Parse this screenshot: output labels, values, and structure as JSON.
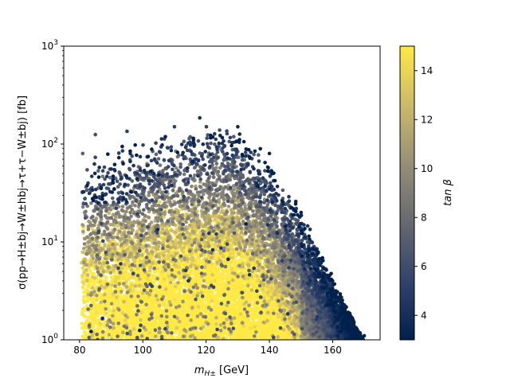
{
  "chart_data": {
    "type": "scatter",
    "title": "",
    "xlabel": "m_H± [GeV]",
    "xlabel_parts": {
      "main": "m",
      "sub": "H±",
      "unit": "[GeV]"
    },
    "ylabel": "σ(pp→H±bj→W±hbj→τ+τ−W±bj) [fb]",
    "xlim": [
      75,
      175
    ],
    "ylim": [
      1,
      1000
    ],
    "yscale": "log",
    "grid": false,
    "xticks": [
      80,
      100,
      120,
      140,
      160
    ],
    "xtick_labels": [
      "80",
      "100",
      "120",
      "140",
      "160"
    ],
    "yticks": [
      1,
      10,
      100,
      1000
    ],
    "ytick_labels": [
      {
        "base": "10",
        "exp": "0"
      },
      {
        "base": "10",
        "exp": "1"
      },
      {
        "base": "10",
        "exp": "2"
      },
      {
        "base": "10",
        "exp": "3"
      }
    ],
    "colorbar": {
      "label": "tan β",
      "colormap": "cividis",
      "range": [
        3,
        15
      ],
      "ticks": [
        4,
        6,
        8,
        10,
        12,
        14
      ],
      "tick_labels": [
        "4",
        "6",
        "8",
        "10",
        "12",
        "14"
      ],
      "stops": [
        "#00204d",
        "#31446b",
        "#666970",
        "#958f78",
        "#cbba69",
        "#ffe945"
      ]
    },
    "point_count": 14000,
    "series": [
      {
        "color_by": "tan_beta",
        "description_points": "dense cloud; high tan β (yellow) concentrated at low cross-section below ~30 fb, low tan β (dark blue) at high cross-section up to ~180 fb, upper boundary falling steeply between 140 and 170 GeV",
        "sample_points": [
          {
            "x": 81,
            "y": 80,
            "c": 7
          },
          {
            "x": 85,
            "y": 125,
            "c": 6
          },
          {
            "x": 95,
            "y": 135,
            "c": 5
          },
          {
            "x": 110,
            "y": 150,
            "c": 5
          },
          {
            "x": 118,
            "y": 185,
            "c": 4
          },
          {
            "x": 130,
            "y": 150,
            "c": 3.5
          },
          {
            "x": 140,
            "y": 80,
            "c": 3.2
          },
          {
            "x": 150,
            "y": 20,
            "c": 3.2
          },
          {
            "x": 160,
            "y": 4,
            "c": 3.2
          },
          {
            "x": 170,
            "y": 1.1,
            "c": 3.2
          },
          {
            "x": 90,
            "y": 15,
            "c": 14
          },
          {
            "x": 110,
            "y": 20,
            "c": 14
          },
          {
            "x": 130,
            "y": 10,
            "c": 14
          },
          {
            "x": 150,
            "y": 3,
            "c": 14
          },
          {
            "x": 100,
            "y": 3,
            "c": 13
          },
          {
            "x": 120,
            "y": 1.5,
            "c": 12
          }
        ]
      }
    ]
  }
}
